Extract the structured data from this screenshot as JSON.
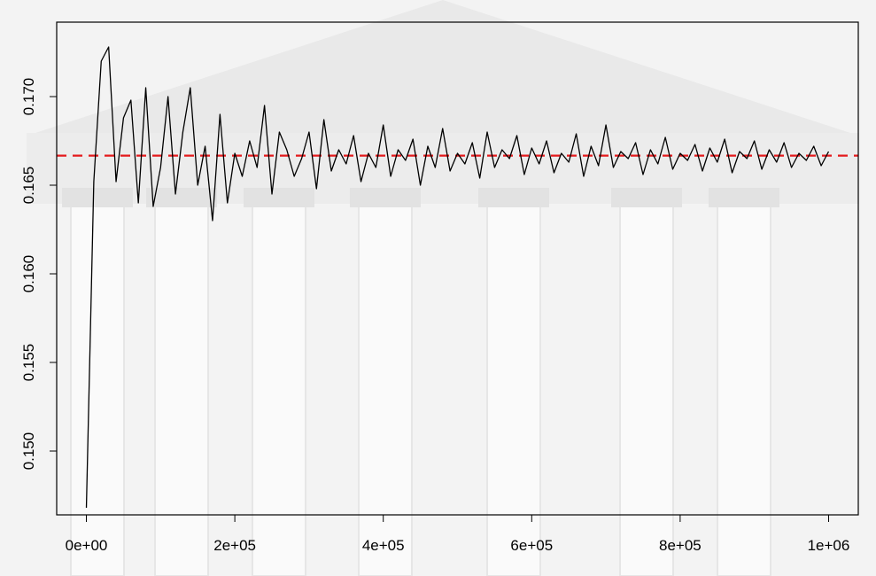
{
  "chart_data": {
    "type": "line",
    "title": "",
    "xlabel": "",
    "ylabel": "",
    "xlim": [
      -40000,
      1040000
    ],
    "ylim": [
      0.1464,
      0.1742
    ],
    "x_ticks": [
      0,
      200000,
      400000,
      600000,
      800000,
      1000000
    ],
    "x_tick_labels": [
      "0e+00",
      "2e+05",
      "4e+05",
      "6e+05",
      "8e+05",
      "1e+06"
    ],
    "y_ticks": [
      0.15,
      0.155,
      0.16,
      0.165,
      0.17
    ],
    "y_tick_labels": [
      "0.150",
      "0.155",
      "0.160",
      "0.165",
      "0.170"
    ],
    "reference_line": {
      "y": 0.16667,
      "style": "dashed",
      "color": "#e41a1c"
    },
    "series_color": "#000000",
    "background": "faded grayscale photo of a neoclassical building with columns",
    "series": [
      {
        "x_start": 0,
        "x_step": 1000,
        "values": [
          0.1468,
          0.1652,
          0.172,
          0.1728,
          0.1652,
          0.1688,
          0.1698,
          0.164,
          0.1705,
          0.1638,
          0.166,
          0.17,
          0.1645,
          0.168,
          0.1705,
          0.165,
          0.1672,
          0.163,
          0.169,
          0.164,
          0.1668,
          0.1655,
          0.1675,
          0.166,
          0.1695,
          0.1645,
          0.168,
          0.167,
          0.1655,
          0.1665,
          0.168,
          0.1648,
          0.1687,
          0.1658,
          0.167,
          0.1662,
          0.1678,
          0.1652,
          0.1668,
          0.166,
          0.1684,
          0.1655,
          0.167,
          0.1664,
          0.1676,
          0.165,
          0.1672,
          0.166,
          0.1682,
          0.1658,
          0.1668,
          0.1662,
          0.1674,
          0.1654,
          0.168,
          0.166,
          0.167,
          0.1665,
          0.1678,
          0.1656,
          0.1671,
          0.1662,
          0.1675,
          0.1657,
          0.1668,
          0.1663,
          0.1679,
          0.1655,
          0.1672,
          0.1661,
          0.1684,
          0.166,
          0.1669,
          0.1665,
          0.1674,
          0.1656,
          0.167,
          0.1662,
          0.1677,
          0.1659,
          0.1668,
          0.1664,
          0.1673,
          0.1658,
          0.1671,
          0.1663,
          0.1676,
          0.1657,
          0.1669,
          0.1665,
          0.1675,
          0.1659,
          0.167,
          0.1663,
          0.1674,
          0.166,
          0.1668,
          0.1664,
          0.1672,
          0.1661,
          0.1669
        ]
      }
    ]
  }
}
